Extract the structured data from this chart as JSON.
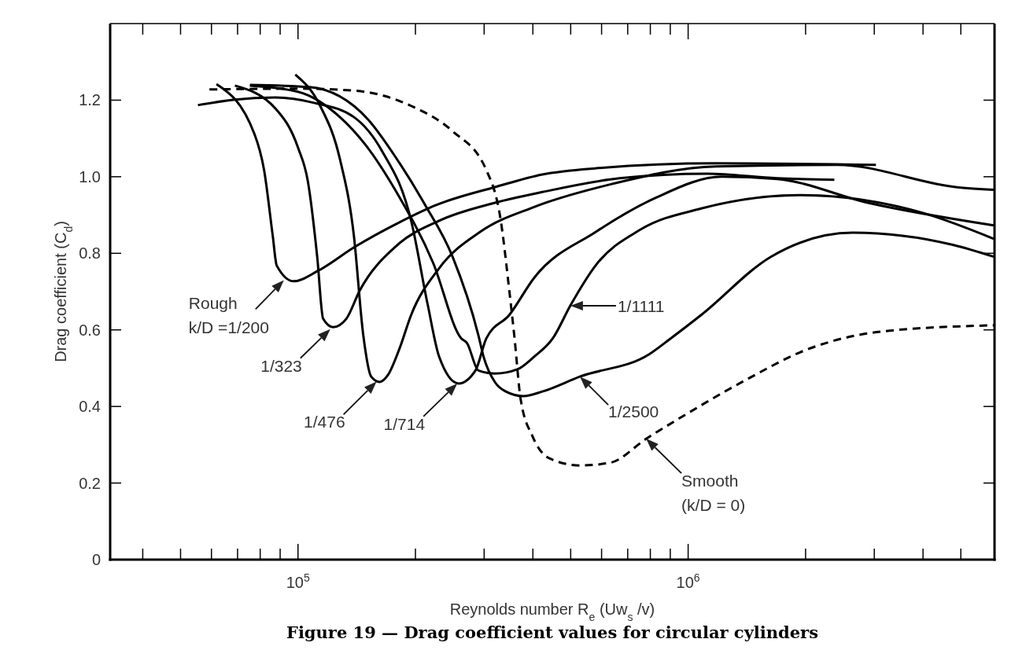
{
  "chart_data": {
    "type": "line",
    "title": "Figure 19 — Drag coefficient values for circular cylinders",
    "xlabel": "Reynolds number R$_{e}$ (Uw$_{s}$ /v)",
    "ylabel": "Drag coefficient (C$_{d}$)",
    "log": "x",
    "grid": false,
    "marker": "none",
    "xlim": [
      33000,
      6100000
    ],
    "ylim": [
      0,
      1.4
    ],
    "xticks": [
      {
        "value": 40000,
        "label": null
      },
      {
        "value": 50000,
        "label": null
      },
      {
        "value": 60000,
        "label": null
      },
      {
        "value": 70000,
        "label": null
      },
      {
        "value": 80000,
        "label": null
      },
      {
        "value": 90000,
        "label": null
      },
      {
        "value": 100000,
        "label": "10$^{5}$"
      },
      {
        "value": 200000,
        "label": null
      },
      {
        "value": 300000,
        "label": null
      },
      {
        "value": 400000,
        "label": null
      },
      {
        "value": 500000,
        "label": null
      },
      {
        "value": 600000,
        "label": null
      },
      {
        "value": 700000,
        "label": null
      },
      {
        "value": 800000,
        "label": null
      },
      {
        "value": 900000,
        "label": null
      },
      {
        "value": 1000000,
        "label": "10$^{6}$"
      },
      {
        "value": 2000000,
        "label": null
      },
      {
        "value": 3000000,
        "label": null
      },
      {
        "value": 4000000,
        "label": null
      },
      {
        "value": 5000000,
        "label": null
      }
    ],
    "yticks": [
      0,
      0.2,
      0.4,
      0.6,
      0.8,
      {
        "value": 1,
        "label": "1.0"
      },
      1.2
    ],
    "series": [
      {
        "color": "#000000",
        "line_style": "solid",
        "x": [
          61800,
          77300,
          81900,
          86100,
          88200,
          97500,
          112400,
          139400,
          182000,
          226000,
          320000,
          423000,
          578000,
          1180000,
          3030000
        ],
        "values": [
          1.242,
          1.112,
          1.016,
          0.848,
          0.768,
          0.727,
          0.754,
          0.816,
          0.881,
          0.926,
          0.973,
          1.006,
          1.022,
          1.035,
          1.031
        ]
      },
      {
        "color": "#000000",
        "line_style": "solid",
        "x": [
          68900,
          87600,
          100000,
          106000,
          112000,
          116000,
          123000,
          133000,
          144000,
          179000,
          230000,
          320000,
          423000,
          667000,
          1120000,
          1690000,
          2370000
        ],
        "values": [
          1.238,
          1.178,
          1.076,
          0.988,
          0.791,
          0.629,
          0.607,
          0.629,
          0.703,
          0.82,
          0.885,
          0.932,
          0.96,
          0.996,
          1.008,
          0.996,
          0.992
        ]
      },
      {
        "color": "#000000",
        "line_style": "solid",
        "x": [
          98400,
          114000,
          128000,
          139000,
          147000,
          154000,
          162000,
          170000,
          182000,
          195000,
          230000,
          294000,
          403000,
          631000,
          1180000,
          2410000,
          4940000,
          6070000
        ],
        "values": [
          1.267,
          1.185,
          1.047,
          0.848,
          0.586,
          0.478,
          0.464,
          0.482,
          0.551,
          0.639,
          0.761,
          0.857,
          0.921,
          0.98,
          1.027,
          1.031,
          0.972,
          0.966
        ]
      },
      {
        "color": "#000000",
        "line_style": "solid",
        "x": [
          55400,
          68200,
          87500,
          110000,
          139000,
          164000,
          195000,
          215000,
          230000,
          258000,
          285000,
          304000,
          348000,
          403000,
          578000,
          826000,
          1220000,
          1690000,
          2890000,
          6070000
        ],
        "values": [
          1.187,
          1.201,
          1.207,
          1.193,
          1.156,
          1.068,
          0.885,
          0.666,
          0.53,
          0.46,
          0.494,
          0.578,
          0.639,
          0.736,
          0.855,
          0.945,
          1.0,
          0.994,
          0.932,
          0.873
        ]
      },
      {
        "color": "#000000",
        "line_style": "solid",
        "x": [
          75300,
          100000,
          128000,
          149000,
          179000,
          222000,
          262000,
          271000,
          290000,
          320000,
          365000,
          403000,
          450000,
          500000,
          578000,
          755000,
          1080000,
          1940000,
          3980000,
          6070000
        ],
        "values": [
          1.238,
          1.222,
          1.156,
          1.083,
          0.959,
          0.775,
          0.578,
          0.566,
          0.494,
          0.486,
          0.497,
          0.53,
          0.578,
          0.665,
          0.767,
          0.862,
          0.917,
          0.952,
          0.906,
          0.838
        ]
      },
      {
        "color": "#000000",
        "line_style": "solid",
        "x": [
          75300,
          107000,
          151000,
          179000,
          211000,
          249000,
          290000,
          299000,
          320000,
          341000,
          378000,
          423000,
          528000,
          796000,
          903000,
          1080000,
          1630000,
          2640000,
          4770000,
          6070000
        ],
        "values": [
          1.24,
          1.234,
          1.15,
          1.047,
          0.929,
          0.791,
          0.586,
          0.53,
          0.463,
          0.439,
          0.427,
          0.439,
          0.478,
          0.537,
          0.578,
          0.639,
          0.791,
          0.854,
          0.822,
          0.791
        ]
      },
      {
        "color": "#000000",
        "line_style": "dashed",
        "x": [
          59300,
          100000,
          139000,
          195000,
          249000,
          304000,
          331000,
          348000,
          359000,
          372000,
          400000,
          440000,
          528000,
          631000,
          782000,
          986000,
          1410000,
          2020000,
          3150000,
          6070000
        ],
        "values": [
          1.228,
          1.23,
          1.225,
          1.185,
          1.119,
          1.017,
          0.885,
          0.703,
          0.578,
          0.42,
          0.32,
          0.265,
          0.246,
          0.253,
          0.316,
          0.379,
          0.47,
          0.549,
          0.596,
          0.612
        ]
      }
    ],
    "annotations": [
      {
        "text": "Rough\nk/D =1/200",
        "x": 92000,
        "y": 0.73
      },
      {
        "text": "1/323",
        "x": 121000,
        "y": 0.602
      },
      {
        "text": "1/476",
        "x": 159000,
        "y": 0.465
      },
      {
        "text": "1/714",
        "x": 256000,
        "y": 0.46
      },
      {
        "text": "1/1111",
        "x": 499000,
        "y": 0.663
      },
      {
        "text": "1/2500",
        "x": 528000,
        "y": 0.478
      },
      {
        "text": "Smooth\n(k/D = 0)",
        "x": 780000,
        "y": 0.316
      }
    ]
  }
}
